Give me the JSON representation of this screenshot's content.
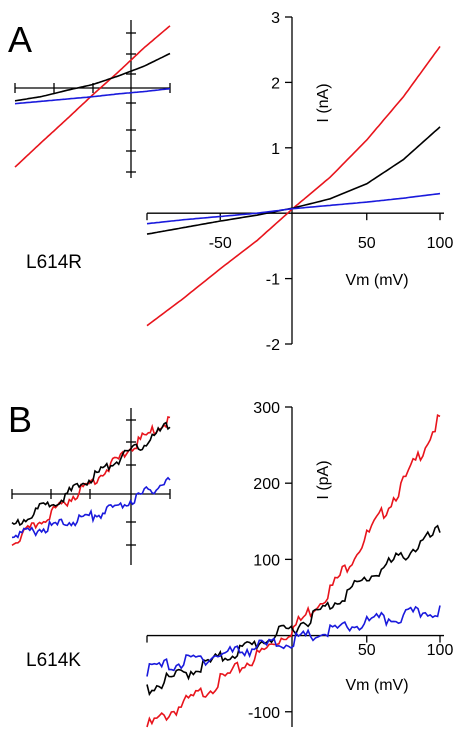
{
  "figure": {
    "panels": [
      {
        "letter": "A",
        "mutant": "L614R"
      },
      {
        "letter": "B",
        "mutant": "L614K"
      }
    ]
  },
  "chart_data": [
    {
      "panel": "A",
      "type": "line",
      "xlabel": "Vm (mV)",
      "ylabel": "I (nA)",
      "xlim": [
        -100,
        100
      ],
      "ylim": [
        -2,
        3
      ],
      "xticks": [
        -50,
        50,
        100
      ],
      "xtick_labels": [
        "-50",
        "50",
        "100"
      ],
      "yticks": [
        -2,
        -1,
        1,
        2,
        3
      ],
      "ytick_labels": [
        "-2",
        "-1",
        "1",
        "2",
        "3"
      ],
      "x": [
        -100,
        -75,
        -50,
        -25,
        0,
        25,
        50,
        75,
        100
      ],
      "series": [
        {
          "color": "#e8141c",
          "values": [
            -1.72,
            -1.3,
            -0.85,
            -0.42,
            0.08,
            0.55,
            1.12,
            1.78,
            2.55
          ]
        },
        {
          "color": "#000000",
          "values": [
            -0.32,
            -0.22,
            -0.12,
            -0.03,
            0.08,
            0.22,
            0.45,
            0.82,
            1.32
          ]
        },
        {
          "color": "#1a1adc",
          "values": [
            -0.16,
            -0.1,
            -0.05,
            0.0,
            0.07,
            0.12,
            0.17,
            0.23,
            0.3
          ]
        }
      ],
      "inset": {
        "x": [
          -100,
          -75,
          -50,
          -25,
          0,
          25,
          50
        ],
        "series": [
          {
            "color": "#e8141c",
            "values": [
              -1.25,
              -0.83,
              -0.42,
              0.0,
              0.4,
              0.82,
              1.2
            ]
          },
          {
            "color": "#000000",
            "values": [
              -0.1,
              -0.03,
              0.08,
              0.18,
              0.33,
              0.5,
              0.72
            ]
          },
          {
            "color": "#1a1adc",
            "values": [
              -0.15,
              -0.11,
              -0.07,
              -0.03,
              0.02,
              0.06,
              0.11
            ]
          }
        ]
      }
    },
    {
      "panel": "B",
      "type": "line",
      "xlabel": "Vm (mV)",
      "ylabel": "I (pA)",
      "xlim": [
        -100,
        100
      ],
      "ylim": [
        -120,
        300
      ],
      "xticks": [
        50,
        100
      ],
      "xtick_labels": [
        "50",
        "100"
      ],
      "yticks": [
        -100,
        100,
        200,
        300
      ],
      "ytick_labels": [
        "-100",
        "100",
        "200",
        "300"
      ],
      "x": [
        -100,
        -75,
        -50,
        -25,
        0,
        25,
        50,
        75,
        100
      ],
      "series": [
        {
          "color": "#e8141c",
          "values": [
            -115,
            -85,
            -55,
            -22,
            15,
            65,
            135,
            205,
            290
          ]
        },
        {
          "color": "#000000",
          "values": [
            -65,
            -45,
            -25,
            -5,
            15,
            45,
            80,
            110,
            142
          ]
        },
        {
          "color": "#1a1adc",
          "values": [
            -40,
            -30,
            -20,
            -10,
            -2,
            10,
            22,
            30,
            40
          ]
        }
      ],
      "inset": {
        "x": [
          -100,
          -75,
          -50,
          -25,
          0,
          25,
          50
        ],
        "series": [
          {
            "color": "#e8141c",
            "values": [
              -0.9,
              -0.45,
              0.0,
              0.45,
              0.95,
              1.45,
              1.85
            ]
          },
          {
            "color": "#000000",
            "values": [
              -0.55,
              -0.15,
              0.15,
              0.55,
              0.95,
              1.3,
              1.75
            ]
          },
          {
            "color": "#1a1adc",
            "values": [
              -0.75,
              -0.6,
              -0.45,
              -0.3,
              -0.1,
              0.2,
              0.5
            ]
          }
        ]
      }
    }
  ]
}
